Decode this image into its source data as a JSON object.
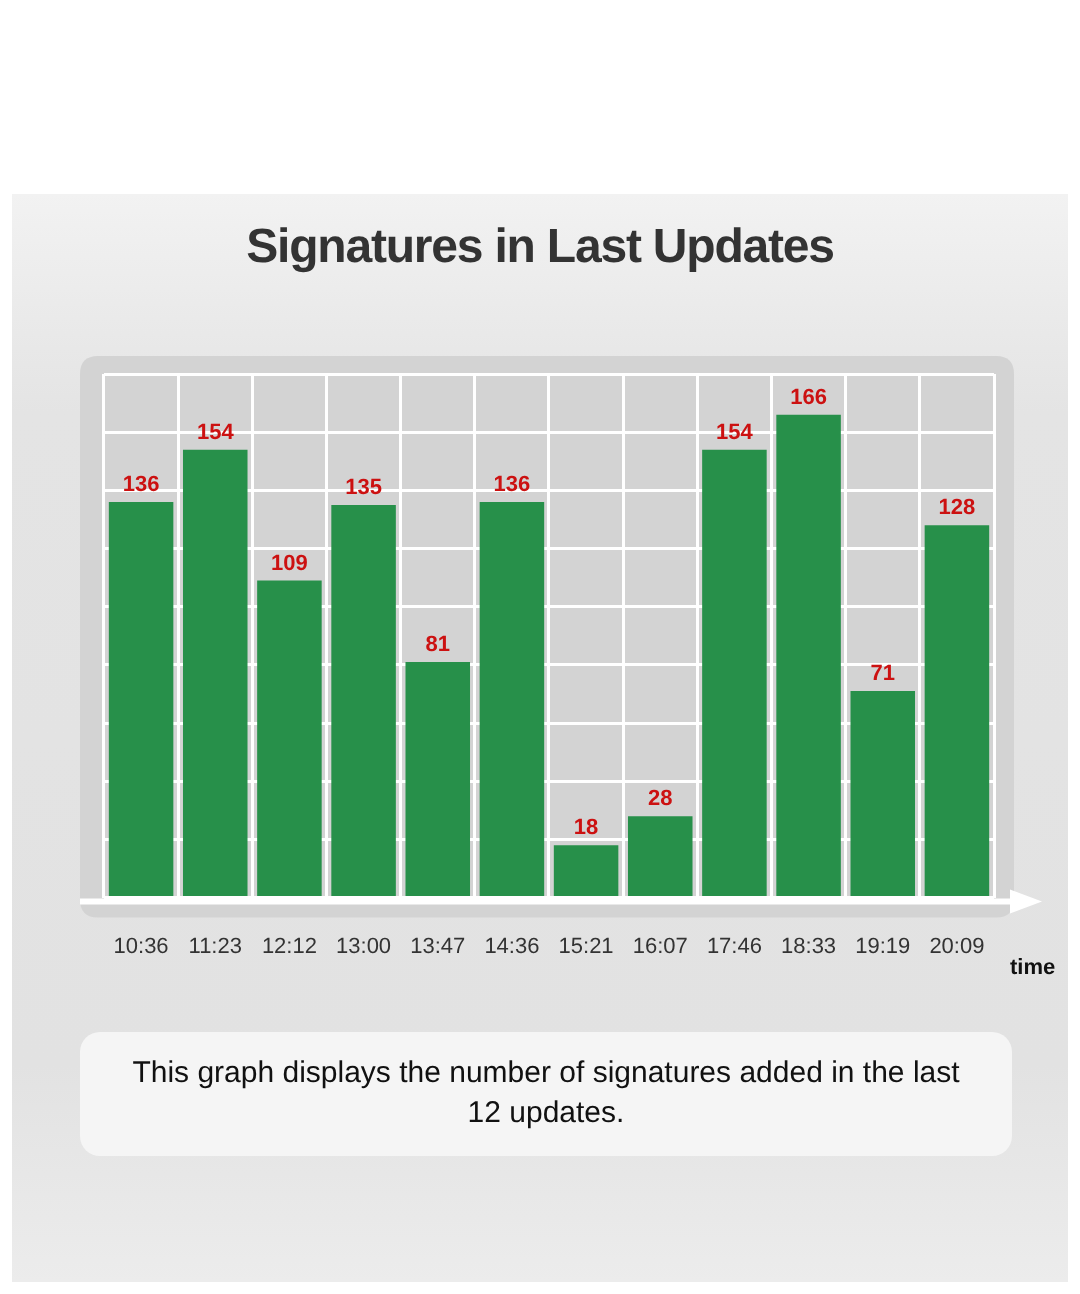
{
  "chart_data": {
    "type": "bar",
    "title": "Signatures in Last Updates",
    "xlabel": "time",
    "categories": [
      "10:36",
      "11:23",
      "12:12",
      "13:00",
      "13:47",
      "14:36",
      "15:21",
      "16:07",
      "17:46",
      "18:33",
      "19:19",
      "20:09"
    ],
    "values": [
      136,
      154,
      109,
      135,
      81,
      136,
      18,
      28,
      154,
      166,
      71,
      128
    ],
    "color": "#27904a",
    "data_labels": true,
    "grid": true,
    "tick_labels": "x",
    "annotations": [
      "This graph displays the number of signatures added in the last 12 updates."
    ]
  }
}
